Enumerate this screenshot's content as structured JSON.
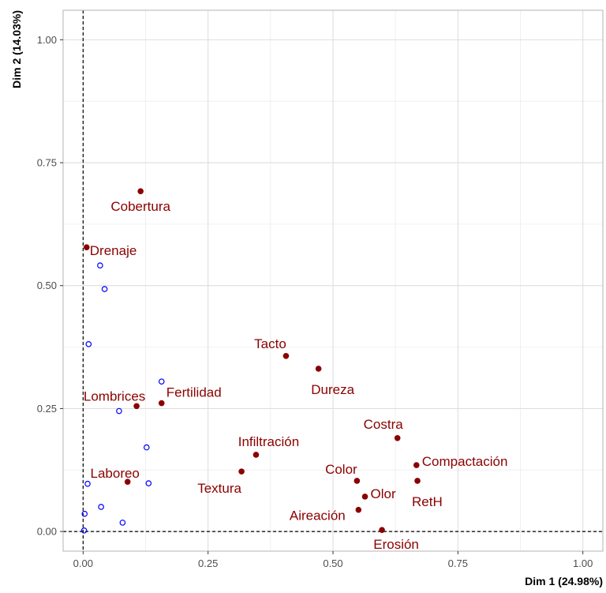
{
  "chart_data": {
    "type": "scatter",
    "xlabel": "Dim 1 (24.98%)",
    "ylabel": "Dim 2 (14.03%)",
    "xlim": [
      -0.04,
      1.04
    ],
    "ylim": [
      -0.04,
      1.06
    ],
    "x_ticks": [
      "0.00",
      "0.25",
      "0.50",
      "0.75",
      "1.00"
    ],
    "y_ticks": [
      "0.00",
      "0.25",
      "0.50",
      "0.75",
      "1.00"
    ],
    "grid": true,
    "reference_lines": {
      "x": 0,
      "y": 0
    },
    "series": [
      {
        "role": "variables",
        "color": "#8b0000",
        "marker": "filled-circle",
        "points": [
          {
            "label": "Cobertura",
            "x": 0.115,
            "y": 0.692
          },
          {
            "label": "Drenaje",
            "x": 0.007,
            "y": 0.578
          },
          {
            "label": "Tacto",
            "x": 0.406,
            "y": 0.357
          },
          {
            "label": "Dureza",
            "x": 0.471,
            "y": 0.331
          },
          {
            "label": "Lombrices",
            "x": 0.107,
            "y": 0.255
          },
          {
            "label": "Fertilidad",
            "x": 0.157,
            "y": 0.261
          },
          {
            "label": "Costra",
            "x": 0.629,
            "y": 0.19
          },
          {
            "label": "Infiltración",
            "x": 0.346,
            "y": 0.156
          },
          {
            "label": "Compactación",
            "x": 0.667,
            "y": 0.135
          },
          {
            "label": "Textura",
            "x": 0.317,
            "y": 0.122
          },
          {
            "label": "Laboreo",
            "x": 0.089,
            "y": 0.101
          },
          {
            "label": "Color",
            "x": 0.548,
            "y": 0.103
          },
          {
            "label": "RetH",
            "x": 0.669,
            "y": 0.103
          },
          {
            "label": "Olor",
            "x": 0.564,
            "y": 0.071
          },
          {
            "label": "Aireación",
            "x": 0.551,
            "y": 0.044
          },
          {
            "label": "Erosión",
            "x": 0.598,
            "y": 0.003
          }
        ]
      },
      {
        "role": "supplementary",
        "color": "#0000ff",
        "marker": "open-circle",
        "points": [
          {
            "x": 0.034,
            "y": 0.541
          },
          {
            "x": 0.043,
            "y": 0.493
          },
          {
            "x": 0.011,
            "y": 0.381
          },
          {
            "x": 0.157,
            "y": 0.305
          },
          {
            "x": 0.072,
            "y": 0.245
          },
          {
            "x": 0.127,
            "y": 0.171
          },
          {
            "x": 0.009,
            "y": 0.097
          },
          {
            "x": 0.131,
            "y": 0.098
          },
          {
            "x": 0.036,
            "y": 0.05
          },
          {
            "x": 0.003,
            "y": 0.036
          },
          {
            "x": 0.079,
            "y": 0.018
          },
          {
            "x": 0.002,
            "y": 0.002
          }
        ]
      }
    ]
  }
}
